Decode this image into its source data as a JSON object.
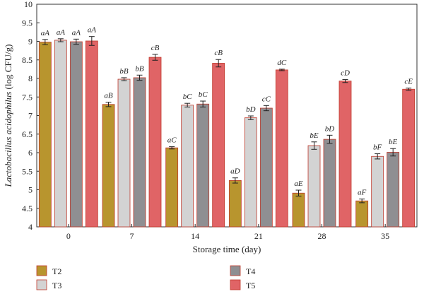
{
  "chart_data": {
    "type": "bar",
    "xlabel": "Storage time (day)",
    "ylabel": "Lactobacillus acidophilus (log CFU/g)",
    "ylim": [
      4,
      10
    ],
    "yticks": [
      "4",
      "4.5",
      "5",
      "5.5",
      "6",
      "6.5",
      "7",
      "7.5",
      "8",
      "8.5",
      "9",
      "9.5",
      "10"
    ],
    "categories": [
      "0",
      "7",
      "14",
      "21",
      "28",
      "35"
    ],
    "legend_placement": "bottom-left",
    "series": [
      {
        "name": "T2",
        "color": "#b8952e",
        "values": [
          8.98,
          7.3,
          6.13,
          5.25,
          4.91,
          4.7
        ],
        "errors": [
          0.07,
          0.06,
          0.03,
          0.07,
          0.08,
          0.05
        ],
        "labels": [
          "aA",
          "aB",
          "aC",
          "aD",
          "aE",
          "aF"
        ]
      },
      {
        "name": "T3",
        "color": "#d3d3d3",
        "values": [
          9.03,
          7.98,
          7.28,
          6.94,
          6.19,
          5.9
        ],
        "errors": [
          0.04,
          0.04,
          0.05,
          0.05,
          0.1,
          0.07
        ],
        "labels": [
          "aA",
          "bB",
          "bC",
          "bD",
          "bE",
          "bF"
        ]
      },
      {
        "name": "T4",
        "color": "#8f8f92",
        "values": [
          8.99,
          8.02,
          7.31,
          7.2,
          6.36,
          6.01
        ],
        "errors": [
          0.07,
          0.07,
          0.08,
          0.07,
          0.11,
          0.1
        ],
        "labels": [
          "aA",
          "bB",
          "bC",
          "cC",
          "bD",
          "bE"
        ]
      },
      {
        "name": "T5",
        "color": "#e06466",
        "values": [
          9.01,
          8.57,
          8.41,
          8.23,
          7.93,
          7.71
        ],
        "errors": [
          0.12,
          0.08,
          0.1,
          0.02,
          0.04,
          0.03
        ],
        "labels": [
          "aA",
          "cB",
          "cB",
          "dC",
          "cD",
          "cE"
        ]
      }
    ]
  }
}
